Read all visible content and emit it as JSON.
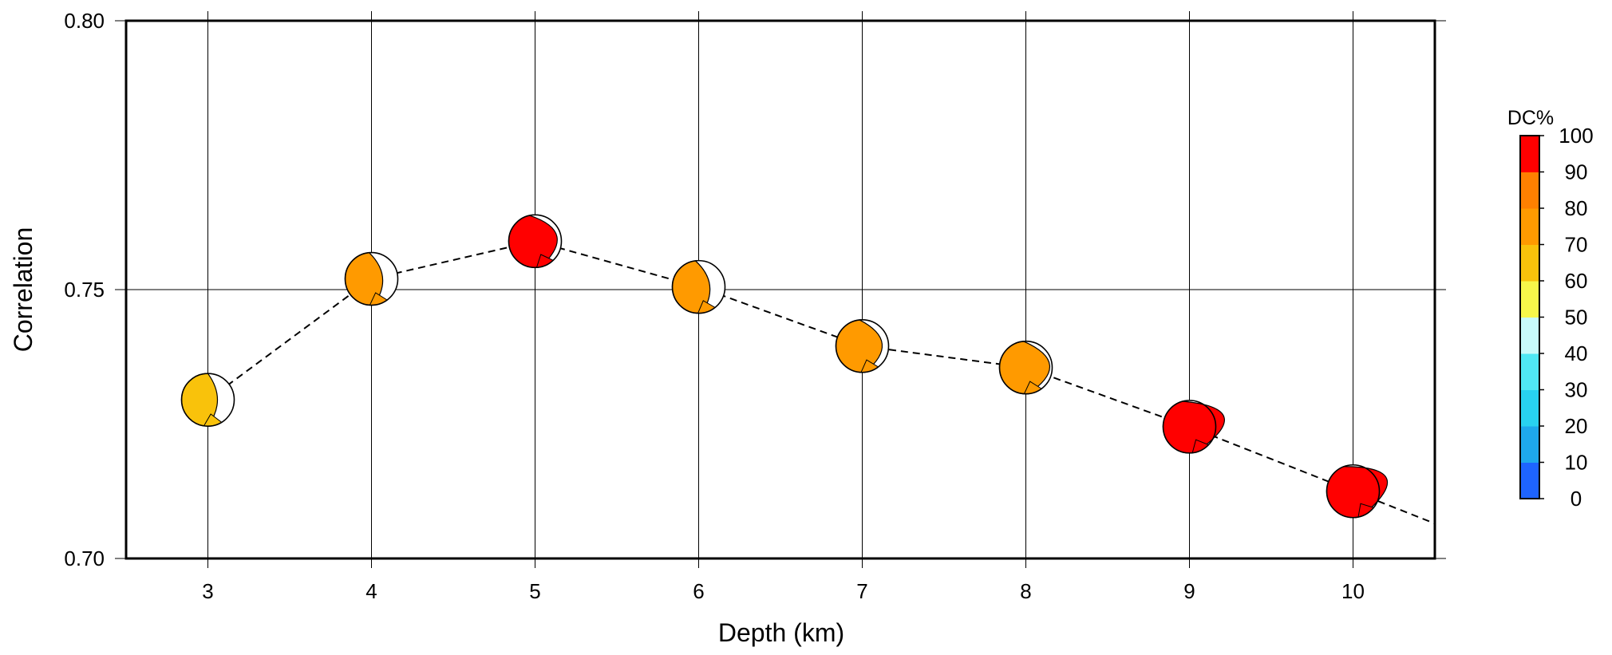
{
  "chart_data": {
    "type": "scatter",
    "title": "",
    "xlabel": "Depth (km)",
    "ylabel": "Correlation",
    "xlim": [
      2.5,
      10.5
    ],
    "ylim": [
      0.7,
      0.8
    ],
    "x_ticks": [
      3,
      4,
      5,
      6,
      7,
      8,
      9,
      10
    ],
    "y_ticks": [
      "0.70",
      "0.75",
      "0.80"
    ],
    "grid": true,
    "points": [
      {
        "depth": 3,
        "correlation": 0.7295,
        "dc_percent": 65,
        "strike": 270,
        "plunge": 12
      },
      {
        "depth": 4,
        "correlation": 0.752,
        "dc_percent": 79,
        "strike": 265,
        "plunge": 14
      },
      {
        "depth": 5,
        "correlation": 0.759,
        "dc_percent": 96,
        "strike": 258,
        "plunge": 28
      },
      {
        "depth": 6,
        "correlation": 0.7505,
        "dc_percent": 75,
        "strike": 263,
        "plunge": 14
      },
      {
        "depth": 7,
        "correlation": 0.7395,
        "dc_percent": 75,
        "strike": 264,
        "plunge": 25
      },
      {
        "depth": 8,
        "correlation": 0.7355,
        "dc_percent": 78,
        "strike": 265,
        "plunge": 30
      },
      {
        "depth": 9,
        "correlation": 0.7245,
        "dc_percent": 96,
        "strike": 255,
        "plunge": 45
      },
      {
        "depth": 10,
        "correlation": 0.7125,
        "dc_percent": 96,
        "strike": 250,
        "plunge": 45
      }
    ],
    "line": {
      "style": "dashed",
      "extends_to": [
        10.5,
        0.7065
      ]
    },
    "colorbar": {
      "title": "DC%",
      "min": 0,
      "max": 100,
      "ticks": [
        "0",
        "10",
        "20",
        "30",
        "40",
        "50",
        "60",
        "70",
        "80",
        "90",
        "100"
      ],
      "colors": [
        "#1e64ff",
        "#1ea8ec",
        "#28d2f0",
        "#50e8f4",
        "#c8fafa",
        "#f7f74a",
        "#f9c20b",
        "#ff9a00",
        "#ff8000",
        "#ff0000"
      ]
    }
  }
}
